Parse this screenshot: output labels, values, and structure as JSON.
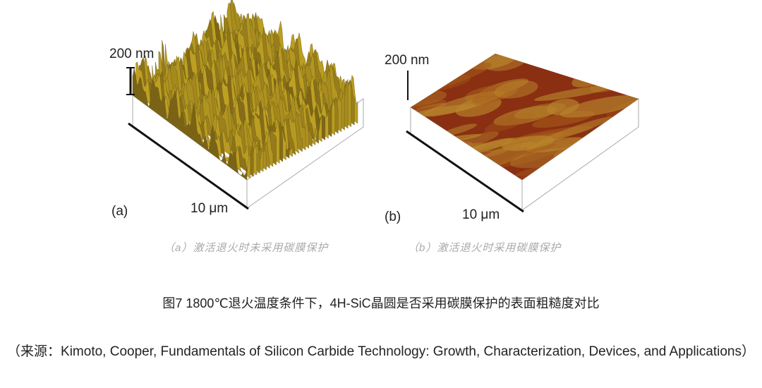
{
  "figure": {
    "panels": [
      {
        "label": "(a)",
        "height_scale": "200 nm",
        "width_scale": "10 μm",
        "caption": "（a）激活退火时未采用碳膜保护"
      },
      {
        "label": "(b)",
        "height_scale": "200 nm",
        "width_scale": "10 μm",
        "caption": "（b）激活退火时采用碳膜保护"
      }
    ],
    "caption": "图7  1800℃退火温度条件下，4H-SiC晶圆是否采用碳膜保护的表面粗糙度对比",
    "source": "（来源：Kimoto, Cooper, Fundamentals of Silicon Carbide Technology: Growth, Characterization, Devices, and Applications）"
  }
}
